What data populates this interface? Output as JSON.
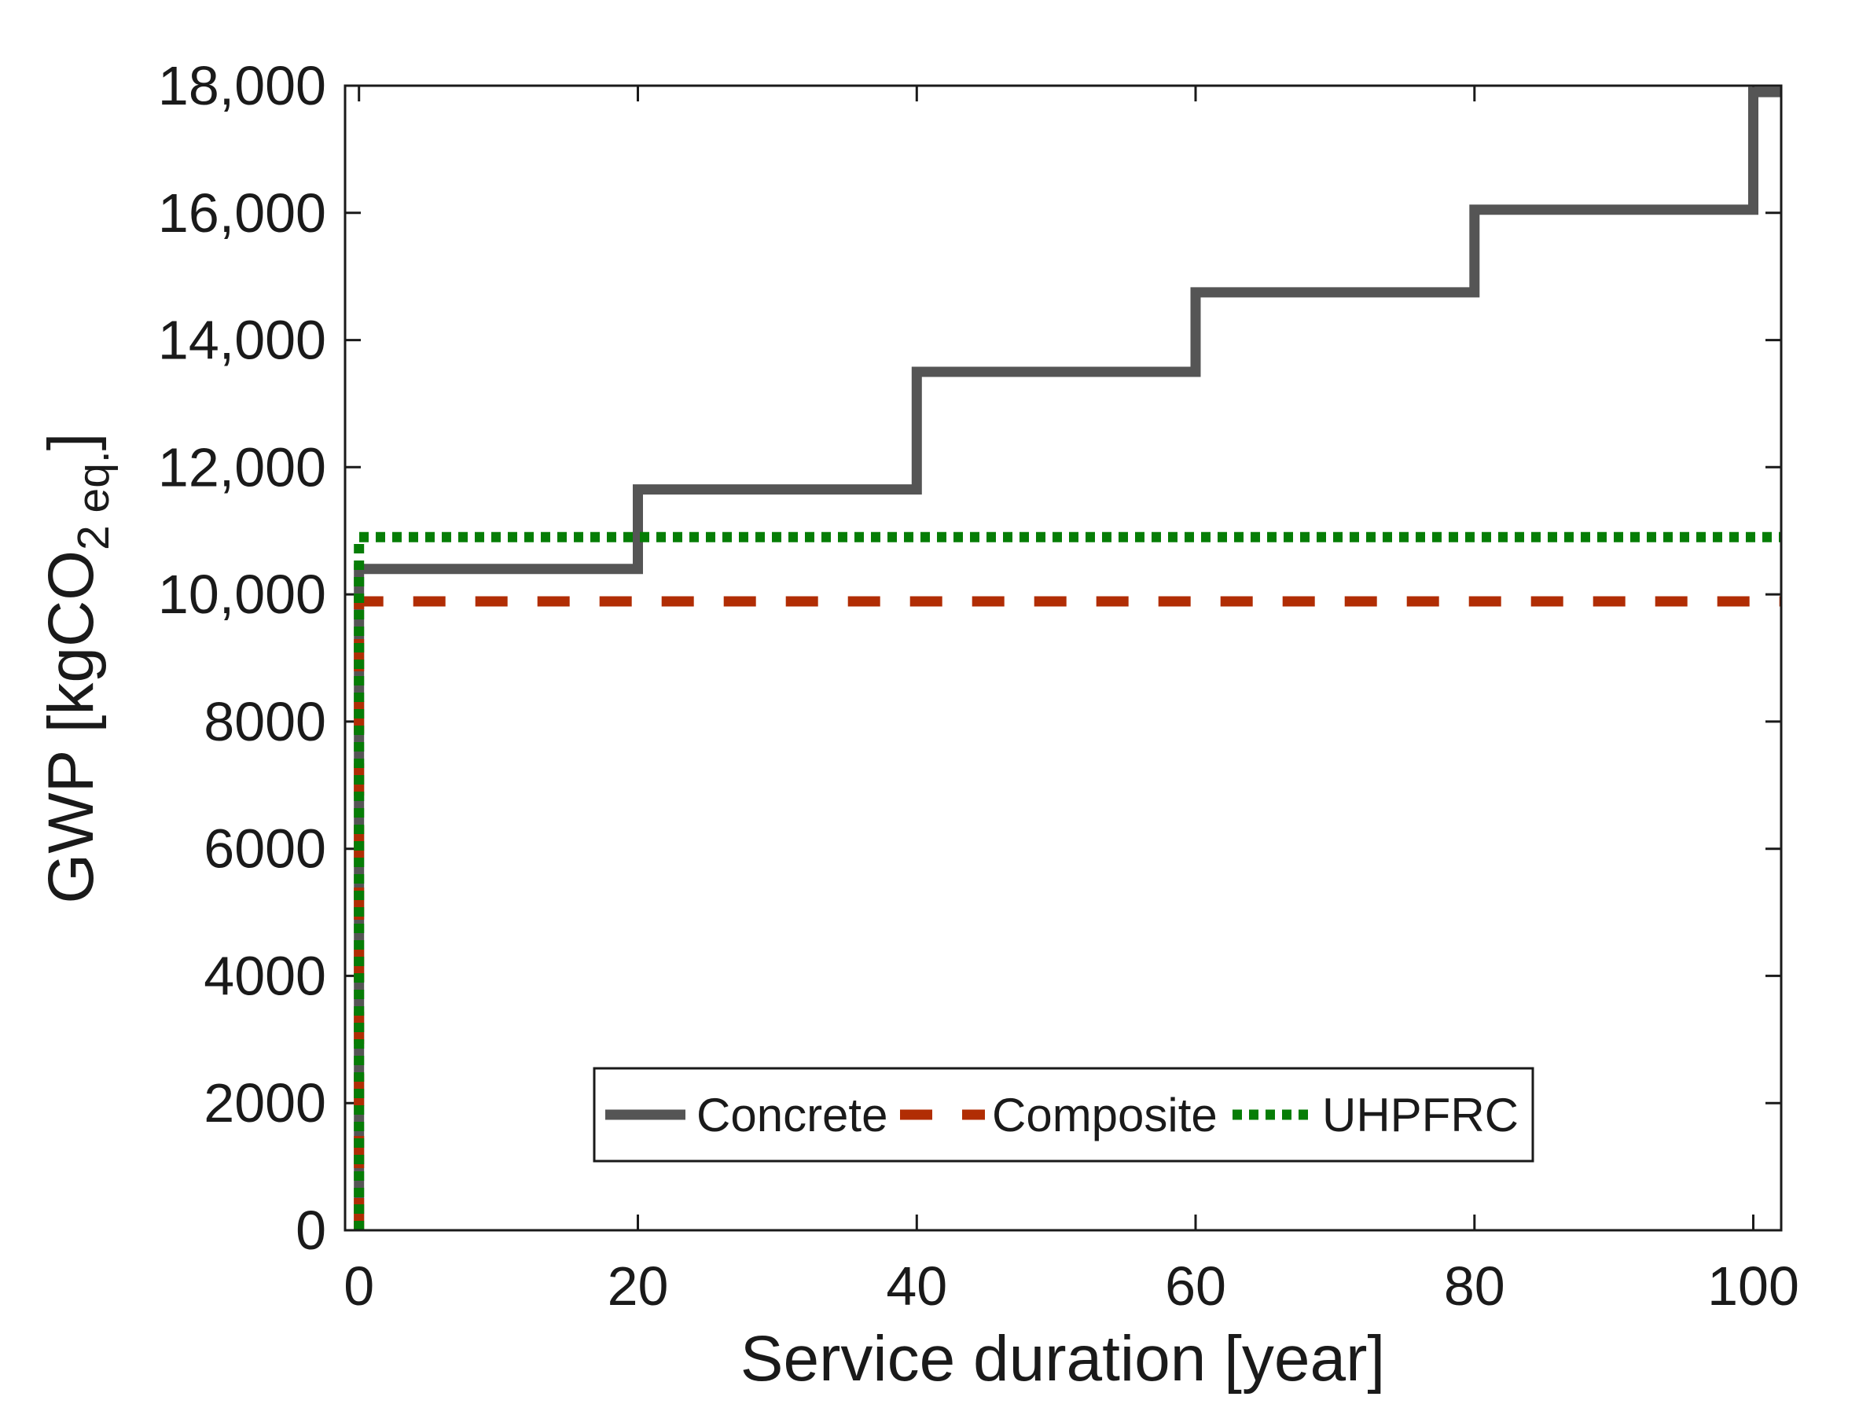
{
  "page": {
    "background": "#ffffff"
  },
  "chart_data": {
    "type": "line",
    "subtype": "step",
    "title": "",
    "xlabel": "Service duration [year]",
    "ylabel": {
      "prefix": "GWP [kgCO",
      "subscript": "2 eq.",
      "suffix": "]"
    },
    "xlim": [
      -1,
      102
    ],
    "ylim": [
      0,
      18000
    ],
    "grid": false,
    "axis_color": "#1a1a1a",
    "xticks": {
      "values": [
        0,
        20,
        40,
        60,
        80,
        100
      ],
      "labels": [
        "0",
        "20",
        "40",
        "60",
        "80",
        "100"
      ]
    },
    "yticks": {
      "values": [
        0,
        2000,
        4000,
        6000,
        8000,
        10000,
        12000,
        14000,
        16000,
        18000
      ],
      "labels": [
        "0",
        "2000",
        "4000",
        "6000",
        "8000",
        "10,000",
        "12,000",
        "14,000",
        "16,000",
        "18,000"
      ]
    },
    "legend": {
      "position": "inside-bottom-center",
      "entries": [
        {
          "label": "Concrete",
          "color": "#555555",
          "line_style": "solid"
        },
        {
          "label": "Composite",
          "color": "#b12d04",
          "line_style": "dashed"
        },
        {
          "label": "UHPFRC",
          "color": "#067d06",
          "line_style": "dotted"
        }
      ]
    },
    "series": [
      {
        "name": "Concrete",
        "color": "#555555",
        "line_style": "solid",
        "points": [
          [
            0,
            0
          ],
          [
            0,
            10400
          ],
          [
            20,
            10400
          ],
          [
            20,
            11650
          ],
          [
            40,
            11650
          ],
          [
            40,
            13500
          ],
          [
            60,
            13500
          ],
          [
            60,
            14750
          ],
          [
            80,
            14750
          ],
          [
            80,
            16050
          ],
          [
            100,
            16050
          ],
          [
            100,
            17900
          ],
          [
            102,
            17900
          ]
        ]
      },
      {
        "name": "Composite",
        "color": "#b12d04",
        "line_style": "dashed",
        "points": [
          [
            0,
            0
          ],
          [
            0,
            9890
          ],
          [
            102,
            9890
          ]
        ]
      },
      {
        "name": "UHPFRC",
        "color": "#067d06",
        "line_style": "dotted",
        "points": [
          [
            0,
            0
          ],
          [
            0,
            10900
          ],
          [
            102,
            10900
          ]
        ]
      }
    ]
  }
}
